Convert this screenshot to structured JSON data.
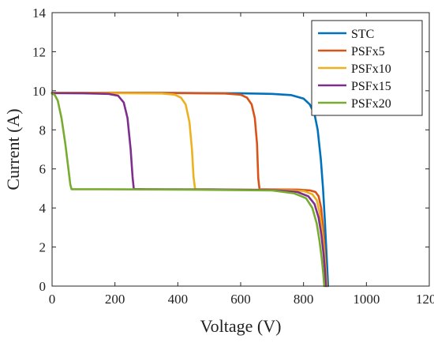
{
  "chart_data": {
    "type": "line",
    "title": "",
    "xlabel": "Voltage (V)",
    "ylabel": "Current (A)",
    "xlim": [
      0,
      1200
    ],
    "ylim": [
      0,
      14
    ],
    "xticks": [
      0,
      200,
      400,
      600,
      800,
      1000,
      1200
    ],
    "yticks": [
      0,
      2,
      4,
      6,
      8,
      10,
      12,
      14
    ],
    "grid": false,
    "legend_position": "top-right",
    "series": [
      {
        "name": "STC",
        "color": "#0072BD",
        "x": [
          0,
          200,
          400,
          600,
          700,
          760,
          800,
          820,
          835,
          845,
          855,
          862,
          868,
          872,
          876,
          878
        ],
        "y": [
          9.9,
          9.9,
          9.89,
          9.87,
          9.84,
          9.78,
          9.6,
          9.3,
          8.8,
          8.0,
          6.5,
          5.0,
          3.3,
          2.0,
          0.7,
          0.0
        ]
      },
      {
        "name": "PSFx5",
        "color": "#D95319",
        "x": [
          0,
          200,
          400,
          550,
          600,
          620,
          635,
          645,
          652,
          656,
          660,
          700,
          780,
          820,
          838,
          848,
          856,
          862,
          867,
          871,
          874
        ],
        "y": [
          9.9,
          9.9,
          9.88,
          9.86,
          9.8,
          9.65,
          9.3,
          8.6,
          7.3,
          5.5,
          4.96,
          4.95,
          4.94,
          4.9,
          4.82,
          4.6,
          4.0,
          3.0,
          1.9,
          0.8,
          0.0
        ]
      },
      {
        "name": "PSFx10",
        "color": "#EDB120",
        "x": [
          0,
          200,
          350,
          390,
          410,
          425,
          437,
          445,
          450,
          455,
          500,
          700,
          800,
          828,
          842,
          852,
          860,
          866,
          870,
          873
        ],
        "y": [
          9.9,
          9.88,
          9.86,
          9.8,
          9.65,
          9.3,
          8.4,
          7.0,
          5.6,
          4.96,
          4.95,
          4.93,
          4.87,
          4.7,
          4.4,
          3.7,
          2.7,
          1.7,
          0.8,
          0.0
        ]
      },
      {
        "name": "PSFx15",
        "color": "#7E2F8E",
        "x": [
          0,
          100,
          180,
          210,
          228,
          240,
          250,
          256,
          260,
          300,
          500,
          700,
          780,
          815,
          835,
          848,
          857,
          864,
          868,
          871
        ],
        "y": [
          9.88,
          9.87,
          9.84,
          9.75,
          9.4,
          8.6,
          7.0,
          5.6,
          4.97,
          4.96,
          4.95,
          4.92,
          4.82,
          4.6,
          4.2,
          3.5,
          2.6,
          1.6,
          0.8,
          0.0
        ]
      },
      {
        "name": "PSFx20",
        "color": "#77AC30",
        "x": [
          0,
          8,
          18,
          30,
          42,
          52,
          58,
          62,
          100,
          300,
          500,
          700,
          770,
          808,
          828,
          842,
          851,
          858,
          863,
          866
        ],
        "y": [
          9.85,
          9.8,
          9.5,
          8.6,
          7.3,
          6.0,
          5.2,
          4.96,
          4.96,
          4.95,
          4.93,
          4.9,
          4.75,
          4.5,
          4.0,
          3.2,
          2.3,
          1.4,
          0.6,
          0.0
        ]
      }
    ]
  }
}
